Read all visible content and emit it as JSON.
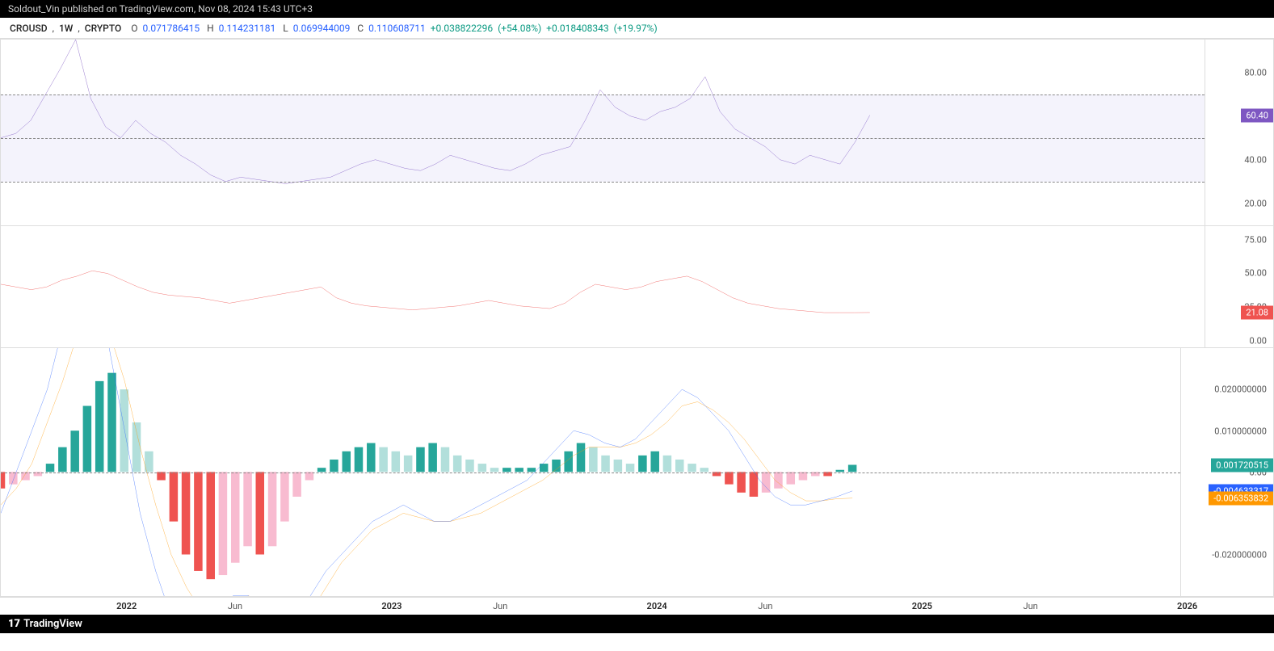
{
  "header": {
    "text": "Soldout_Vin published on TradingView.com, Nov 08, 2024 15:43 UTC+3"
  },
  "symbol": {
    "pair": "CROUSD",
    "interval": "1W",
    "exchange": "CRYPTO",
    "open": "0.071786415",
    "high": "0.114231181",
    "low": "0.069944009",
    "close": "0.110608711",
    "change": "+0.038822296",
    "change_pct": "(+54.08%)",
    "change2": "+0.018408343",
    "change2_pct": "(+19.97%)"
  },
  "xaxis": {
    "labels": [
      {
        "x": 0.105,
        "text": "2022",
        "bold": true
      },
      {
        "x": 0.195,
        "text": "Jun",
        "bold": false
      },
      {
        "x": 0.325,
        "text": "2023",
        "bold": true
      },
      {
        "x": 0.415,
        "text": "Jun",
        "bold": false
      },
      {
        "x": 0.545,
        "text": "2024",
        "bold": true
      },
      {
        "x": 0.635,
        "text": "Jun",
        "bold": false
      },
      {
        "x": 0.765,
        "text": "2025",
        "bold": true
      },
      {
        "x": 0.855,
        "text": "Jun",
        "bold": false
      },
      {
        "x": 0.985,
        "text": "2026",
        "bold": true
      }
    ]
  },
  "rsi": {
    "type": "line",
    "yticks": [
      80,
      60,
      40,
      20
    ],
    "ylim": [
      10,
      95
    ],
    "band_low": 30,
    "band_mid": 50,
    "band_high": 70,
    "line_color": "#7e57c2",
    "current": 60.4,
    "badge_color": "#7e57c2",
    "fill_color": "rgba(120,100,220,0.08)",
    "data": [
      50,
      52,
      58,
      70,
      82,
      95,
      68,
      55,
      50,
      58,
      52,
      48,
      42,
      38,
      33,
      30,
      32,
      31,
      30,
      29,
      30,
      31,
      32,
      35,
      38,
      40,
      38,
      36,
      35,
      38,
      42,
      40,
      38,
      36,
      35,
      38,
      42,
      44,
      46,
      58,
      72,
      64,
      60,
      58,
      62,
      64,
      68,
      78,
      62,
      54,
      50,
      46,
      40,
      38,
      42,
      40,
      38,
      48,
      60.4
    ],
    "xmax": 0.722
  },
  "adx": {
    "type": "line",
    "yticks": [
      75,
      50,
      25,
      0
    ],
    "ylim": [
      -5,
      85
    ],
    "line_color": "#ef5350",
    "current": 21.08,
    "badge_color": "#ef5350",
    "data": [
      42,
      40,
      38,
      40,
      45,
      48,
      52,
      50,
      45,
      40,
      36,
      34,
      33,
      32,
      30,
      28,
      30,
      32,
      34,
      36,
      38,
      40,
      32,
      28,
      26,
      25,
      24,
      23,
      24,
      25,
      26,
      28,
      30,
      28,
      26,
      25,
      24,
      28,
      36,
      42,
      40,
      38,
      40,
      44,
      46,
      48,
      44,
      38,
      32,
      28,
      26,
      24,
      23,
      22,
      21,
      21,
      21,
      21.08
    ],
    "xmax": 0.722
  },
  "macd": {
    "type": "macd",
    "yticks": [
      0.02,
      0.01,
      0,
      -0.02
    ],
    "ylim": [
      -0.03,
      0.03
    ],
    "signal_color": "#ff9800",
    "macd_color": "#2962ff",
    "hist_pos_strong": "#26a69a",
    "hist_pos_weak": "#b2dfdb",
    "hist_neg_strong": "#ef5350",
    "hist_neg_weak": "#f8bbd0",
    "hist_badge": {
      "value": "0.001720515",
      "color": "#26a69a"
    },
    "macd_badge": {
      "value": "-0.004633317",
      "color": "#2962ff"
    },
    "signal_badge": {
      "value": "-0.006353832",
      "color": "#ff9800"
    },
    "xmax": 0.722,
    "histogram": [
      -0.004,
      -0.003,
      -0.002,
      -0.001,
      0.002,
      0.006,
      0.01,
      0.016,
      0.022,
      0.024,
      0.02,
      0.012,
      0.005,
      -0.002,
      -0.012,
      -0.02,
      -0.024,
      -0.026,
      -0.025,
      -0.022,
      -0.018,
      -0.02,
      -0.018,
      -0.012,
      -0.006,
      -0.002,
      0.001,
      0.003,
      0.005,
      0.006,
      0.007,
      0.006,
      0.005,
      0.004,
      0.006,
      0.007,
      0.006,
      0.004,
      0.003,
      0.002,
      0.001,
      0.001,
      0.001,
      0.001,
      0.002,
      0.003,
      0.005,
      0.007,
      0.006,
      0.004,
      0.003,
      0.002,
      0.004,
      0.005,
      0.004,
      0.003,
      0.002,
      0.001,
      -0.001,
      -0.003,
      -0.005,
      -0.006,
      -0.005,
      -0.004,
      -0.003,
      -0.002,
      -0.001,
      -0.001,
      0.0005,
      0.00172
    ],
    "macd_line": [
      -0.01,
      0.0,
      0.01,
      0.02,
      0.035,
      0.05,
      0.04,
      0.03,
      0.01,
      -0.01,
      -0.024,
      -0.035,
      -0.042,
      -0.04,
      -0.035,
      -0.03,
      -0.03,
      -0.036,
      -0.04,
      -0.036,
      -0.03,
      -0.024,
      -0.02,
      -0.016,
      -0.012,
      -0.01,
      -0.008,
      -0.01,
      -0.012,
      -0.012,
      -0.01,
      -0.008,
      -0.006,
      -0.004,
      -0.002,
      0.002,
      0.006,
      0.01,
      0.009,
      0.007,
      0.006,
      0.008,
      0.012,
      0.016,
      0.02,
      0.018,
      0.014,
      0.01,
      0.004,
      -0.002,
      -0.006,
      -0.008,
      -0.008,
      -0.007,
      -0.006,
      -0.0046
    ],
    "signal_line": [
      -0.008,
      -0.004,
      0.002,
      0.012,
      0.022,
      0.034,
      0.038,
      0.034,
      0.022,
      0.006,
      -0.008,
      -0.02,
      -0.028,
      -0.034,
      -0.035,
      -0.032,
      -0.03,
      -0.032,
      -0.036,
      -0.038,
      -0.034,
      -0.028,
      -0.022,
      -0.018,
      -0.014,
      -0.012,
      -0.01,
      -0.011,
      -0.012,
      -0.012,
      -0.011,
      -0.01,
      -0.008,
      -0.006,
      -0.004,
      -0.002,
      0.001,
      0.004,
      0.006,
      0.006,
      0.006,
      0.007,
      0.009,
      0.012,
      0.016,
      0.017,
      0.015,
      0.012,
      0.008,
      0.003,
      -0.002,
      -0.005,
      -0.007,
      -0.007,
      -0.0065,
      -0.00635
    ]
  },
  "footer": {
    "brand": "TradingView"
  }
}
